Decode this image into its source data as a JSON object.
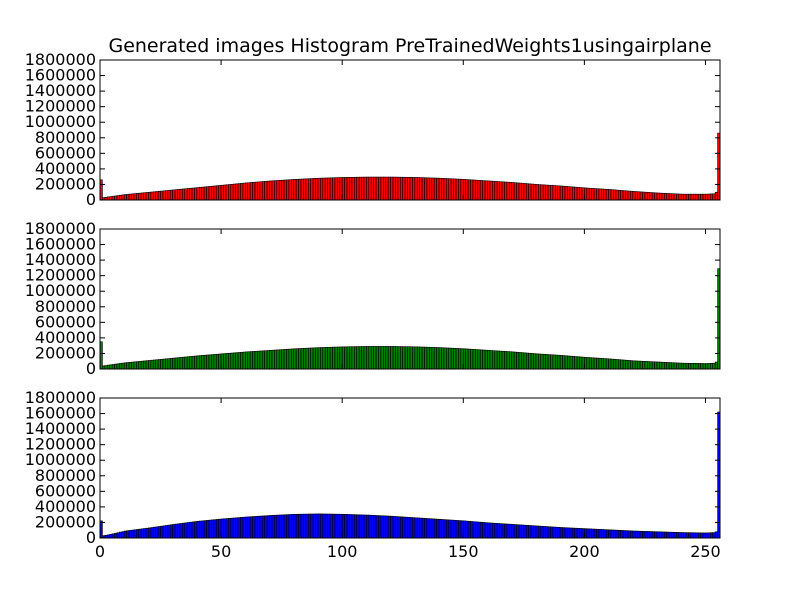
{
  "chart_data": {
    "type": "bar",
    "title": "Generated images Histogram PreTrainedWeights1usingairplane",
    "xlabel": "",
    "ylabel": "",
    "xlim": [
      0,
      256
    ],
    "ylim": [
      0,
      1800000
    ],
    "x_ticks": [
      0,
      50,
      100,
      150,
      200,
      250
    ],
    "x_tick_labels": [
      "0",
      "50",
      "100",
      "150",
      "200",
      "250"
    ],
    "y_ticks": [
      0,
      200000,
      400000,
      600000,
      800000,
      1000000,
      1200000,
      1400000,
      1600000,
      1800000
    ],
    "y_tick_labels": [
      "0",
      "200000",
      "400000",
      "600000",
      "800000",
      "1000000",
      "1200000",
      "1400000",
      "1600000",
      "1800000"
    ],
    "grid": false,
    "legend": "none",
    "bins": 256,
    "series": [
      {
        "color": "#ff0000",
        "knots": [
          [
            0,
            260000
          ],
          [
            1,
            30000
          ],
          [
            3,
            40000
          ],
          [
            10,
            70000
          ],
          [
            20,
            100000
          ],
          [
            30,
            130000
          ],
          [
            40,
            160000
          ],
          [
            50,
            190000
          ],
          [
            60,
            220000
          ],
          [
            70,
            245000
          ],
          [
            80,
            265000
          ],
          [
            90,
            280000
          ],
          [
            100,
            290000
          ],
          [
            110,
            295000
          ],
          [
            120,
            295000
          ],
          [
            130,
            290000
          ],
          [
            140,
            280000
          ],
          [
            150,
            265000
          ],
          [
            160,
            245000
          ],
          [
            170,
            225000
          ],
          [
            180,
            200000
          ],
          [
            190,
            180000
          ],
          [
            200,
            155000
          ],
          [
            210,
            135000
          ],
          [
            220,
            110000
          ],
          [
            230,
            90000
          ],
          [
            240,
            75000
          ],
          [
            250,
            75000
          ],
          [
            253,
            80000
          ],
          [
            254,
            100000
          ],
          [
            255,
            860000
          ]
        ]
      },
      {
        "color": "#008000",
        "knots": [
          [
            0,
            350000
          ],
          [
            1,
            40000
          ],
          [
            3,
            50000
          ],
          [
            10,
            80000
          ],
          [
            20,
            110000
          ],
          [
            30,
            140000
          ],
          [
            40,
            170000
          ],
          [
            50,
            195000
          ],
          [
            60,
            220000
          ],
          [
            70,
            240000
          ],
          [
            80,
            260000
          ],
          [
            90,
            275000
          ],
          [
            100,
            285000
          ],
          [
            110,
            290000
          ],
          [
            120,
            290000
          ],
          [
            130,
            285000
          ],
          [
            140,
            275000
          ],
          [
            150,
            260000
          ],
          [
            160,
            240000
          ],
          [
            170,
            220000
          ],
          [
            180,
            195000
          ],
          [
            190,
            175000
          ],
          [
            200,
            150000
          ],
          [
            210,
            130000
          ],
          [
            220,
            105000
          ],
          [
            230,
            90000
          ],
          [
            240,
            75000
          ],
          [
            250,
            70000
          ],
          [
            253,
            75000
          ],
          [
            254,
            90000
          ],
          [
            255,
            1290000
          ]
        ]
      },
      {
        "color": "#0000ff",
        "knots": [
          [
            0,
            220000
          ],
          [
            1,
            30000
          ],
          [
            3,
            40000
          ],
          [
            10,
            90000
          ],
          [
            20,
            130000
          ],
          [
            30,
            175000
          ],
          [
            40,
            215000
          ],
          [
            50,
            245000
          ],
          [
            60,
            270000
          ],
          [
            70,
            290000
          ],
          [
            80,
            305000
          ],
          [
            90,
            310000
          ],
          [
            100,
            305000
          ],
          [
            110,
            295000
          ],
          [
            120,
            280000
          ],
          [
            130,
            260000
          ],
          [
            140,
            240000
          ],
          [
            150,
            220000
          ],
          [
            160,
            195000
          ],
          [
            170,
            175000
          ],
          [
            180,
            155000
          ],
          [
            190,
            135000
          ],
          [
            200,
            120000
          ],
          [
            210,
            105000
          ],
          [
            220,
            90000
          ],
          [
            230,
            80000
          ],
          [
            240,
            70000
          ],
          [
            250,
            65000
          ],
          [
            253,
            70000
          ],
          [
            254,
            80000
          ],
          [
            255,
            1620000
          ]
        ]
      }
    ]
  }
}
